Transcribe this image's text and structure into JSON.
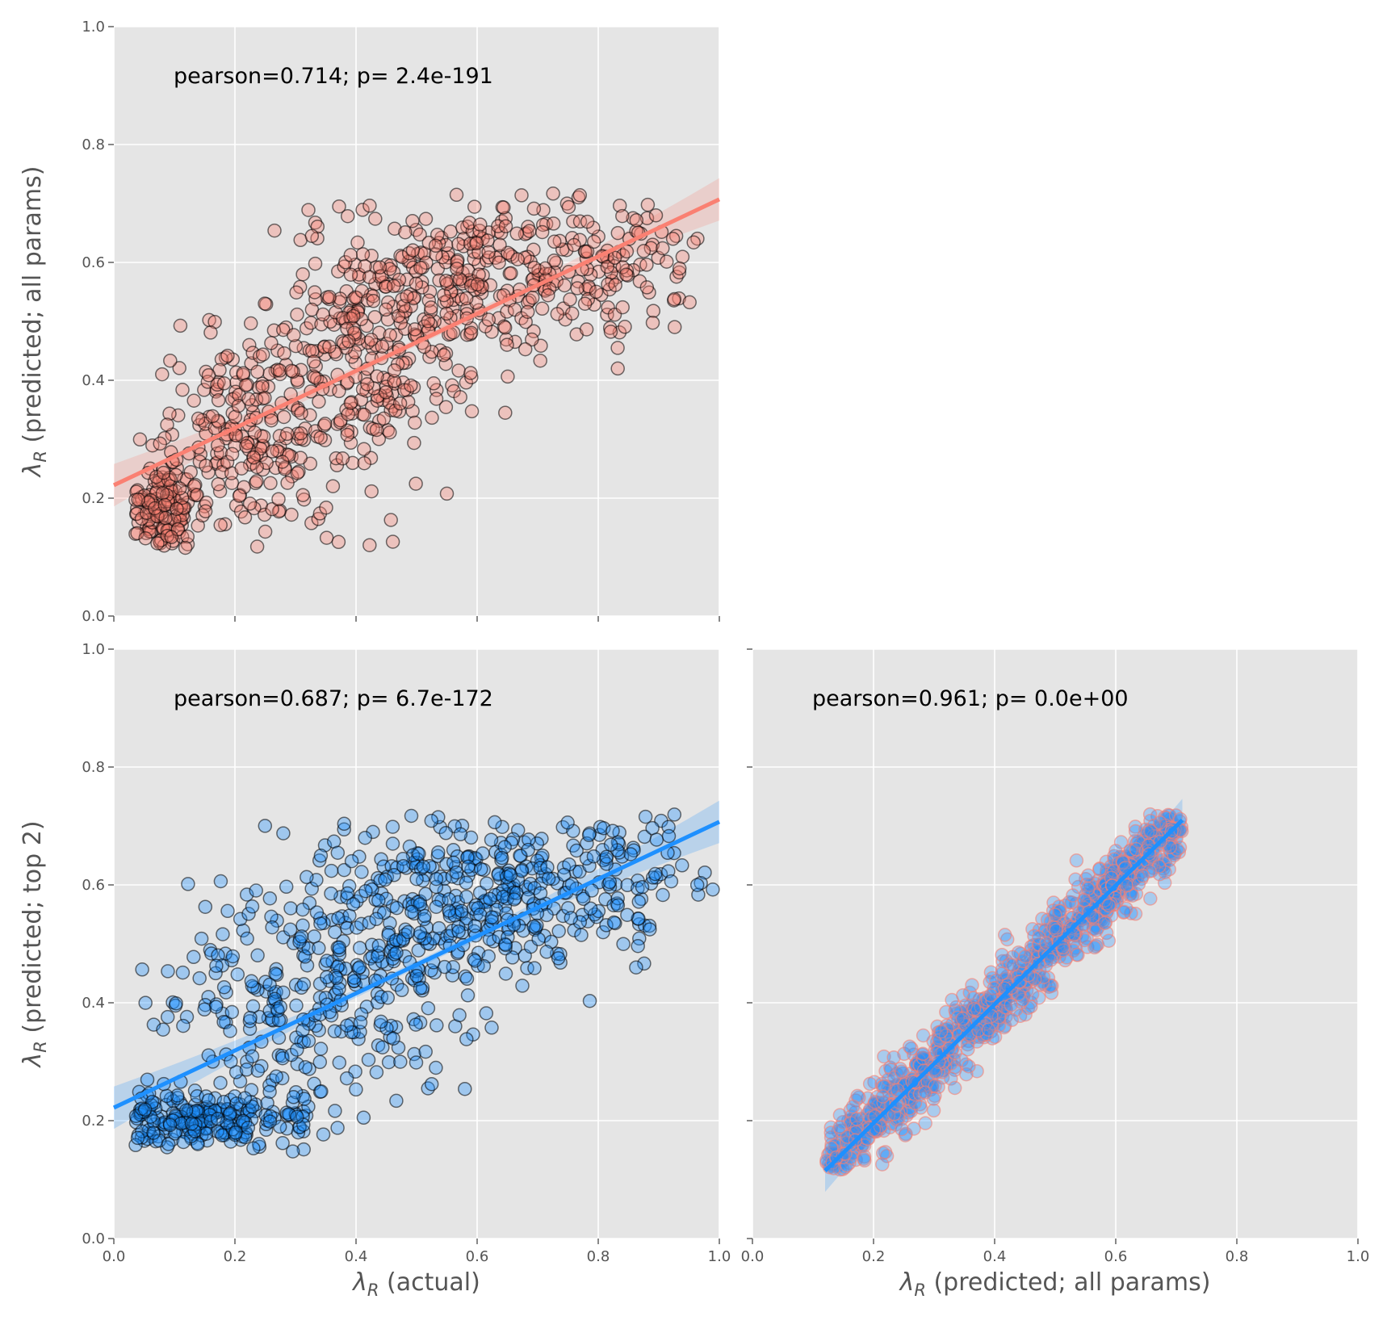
{
  "figure": {
    "background": "#ffffff",
    "panel_bg": "#e5e5e5",
    "grid_color": "#ffffff"
  },
  "chart_data": [
    {
      "id": "panel-top-left",
      "type": "scatter",
      "xlim": [
        0.0,
        1.0
      ],
      "ylim": [
        0.0,
        1.0
      ],
      "xticks": [
        0.0,
        0.2,
        0.4,
        0.6,
        0.8,
        1.0
      ],
      "yticks": [
        0.0,
        0.2,
        0.4,
        0.6,
        0.8,
        1.0
      ],
      "show_x_tick_labels": false,
      "show_y_tick_labels": true,
      "xlabel": "",
      "ylabel": {
        "prefix": "λ",
        "sub": "R",
        "rest": " (predicted; all params)"
      },
      "annotation": "pearson=0.714; p= 2.4e-191",
      "point_fill": "#fa8072",
      "point_edge": "#000000",
      "fill_opacity": 0.35,
      "edge_opacity": 0.55,
      "line_color": "#fa8072",
      "band_color": "#fa8072",
      "regression": {
        "x": [
          0.0,
          1.0
        ],
        "y": [
          0.222,
          0.707
        ]
      },
      "clusters": [
        {
          "cx": 0.08,
          "cy": 0.18,
          "sx": 0.03,
          "sy": 0.04,
          "n": 160
        },
        {
          "cx": 0.22,
          "cy": 0.3,
          "sx": 0.08,
          "sy": 0.09,
          "n": 230
        },
        {
          "cx": 0.42,
          "cy": 0.45,
          "sx": 0.08,
          "sy": 0.11,
          "n": 250
        },
        {
          "cx": 0.62,
          "cy": 0.58,
          "sx": 0.1,
          "sy": 0.07,
          "n": 260
        },
        {
          "cx": 0.85,
          "cy": 0.6,
          "sx": 0.06,
          "sy": 0.06,
          "n": 90
        }
      ]
    },
    {
      "id": "panel-bottom-left",
      "type": "scatter",
      "xlim": [
        0.0,
        1.0
      ],
      "ylim": [
        0.0,
        1.0
      ],
      "xticks": [
        0.0,
        0.2,
        0.4,
        0.6,
        0.8,
        1.0
      ],
      "yticks": [
        0.0,
        0.2,
        0.4,
        0.6,
        0.8,
        1.0
      ],
      "show_x_tick_labels": true,
      "show_y_tick_labels": true,
      "xlabel": {
        "prefix": "λ",
        "sub": "R",
        "rest": " (actual)"
      },
      "ylabel": {
        "prefix": "λ",
        "sub": "R",
        "rest": " (predicted; top 2)"
      },
      "annotation": "pearson=0.687; p= 6.7e-172",
      "point_fill": "#1e90ff",
      "point_edge": "#000000",
      "fill_opacity": 0.35,
      "edge_opacity": 0.55,
      "line_color": "#1e90ff",
      "band_color": "#1e90ff",
      "regression": {
        "x": [
          0.0,
          1.0
        ],
        "y": [
          0.222,
          0.707
        ]
      },
      "clusters": [
        {
          "cx": 0.15,
          "cy": 0.2,
          "sx": 0.09,
          "sy": 0.025,
          "n": 250
        },
        {
          "cx": 0.25,
          "cy": 0.38,
          "sx": 0.1,
          "sy": 0.1,
          "n": 180
        },
        {
          "cx": 0.45,
          "cy": 0.5,
          "sx": 0.09,
          "sy": 0.1,
          "n": 230
        },
        {
          "cx": 0.62,
          "cy": 0.58,
          "sx": 0.1,
          "sy": 0.07,
          "n": 250
        },
        {
          "cx": 0.84,
          "cy": 0.6,
          "sx": 0.07,
          "sy": 0.07,
          "n": 90
        }
      ]
    },
    {
      "id": "panel-bottom-right",
      "type": "scatter",
      "xlim": [
        0.0,
        1.0
      ],
      "ylim": [
        0.0,
        1.0
      ],
      "xticks": [
        0.0,
        0.2,
        0.4,
        0.6,
        0.8,
        1.0
      ],
      "yticks": [
        0.0,
        0.2,
        0.4,
        0.6,
        0.8,
        1.0
      ],
      "show_x_tick_labels": true,
      "show_y_tick_labels": false,
      "xlabel": {
        "prefix": "λ",
        "sub": "R",
        "rest": " (predicted; all params)"
      },
      "ylabel": "",
      "annotation": "pearson=0.961; p= 0.0e+00",
      "point_fill": "#1e90ff",
      "point_edge": "#fa8072",
      "fill_opacity": 0.3,
      "edge_opacity": 0.6,
      "line_color": "#1e90ff",
      "band_color": "#1e90ff",
      "regression": {
        "x": [
          0.12,
          0.71
        ],
        "y": [
          0.115,
          0.71
        ]
      },
      "diagonal": {
        "x_range": [
          0.12,
          0.71
        ],
        "slope": 1.0,
        "intercept": 0.0,
        "noise": 0.035,
        "n": 1000
      }
    }
  ]
}
